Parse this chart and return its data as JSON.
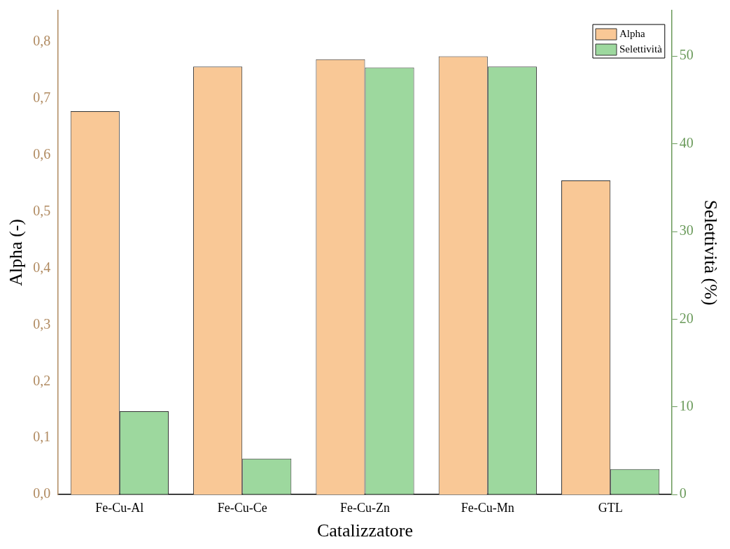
{
  "chart_data": {
    "type": "bar",
    "xlabel": "Catalizzatore",
    "ylabel": "Alpha (-)",
    "y2label": "Selettività (%)",
    "categories": [
      "Fe-Cu-Al",
      "Fe-Cu-Ce",
      "Fe-Cu-Zn",
      "Fe-Cu-Mn",
      "GTL"
    ],
    "series": [
      {
        "name": "Alpha",
        "color": "#f9c896",
        "values": [
          0.677,
          0.756,
          0.769,
          0.774,
          0.555
        ]
      },
      {
        "name": "Selettività",
        "color": "#9dd89e",
        "axis": "y2",
        "values": [
          9.5,
          4.1,
          48.7,
          48.8,
          2.9
        ]
      }
    ],
    "ylim": [
      0,
      0.855
    ],
    "yticks": [
      {
        "value": 0,
        "label": "0,0"
      },
      {
        "value": 0.1,
        "label": "0,1"
      },
      {
        "value": 0.2,
        "label": "0,2"
      },
      {
        "value": 0.3,
        "label": "0,3"
      },
      {
        "value": 0.4,
        "label": "0,4"
      },
      {
        "value": 0.5,
        "label": "0,5"
      },
      {
        "value": 0.6,
        "label": "0,6"
      },
      {
        "value": 0.7,
        "label": "0,7"
      },
      {
        "value": 0.8,
        "label": "0,8"
      }
    ],
    "y2lim": [
      0,
      55.2
    ],
    "y2ticks": [
      0,
      10,
      20,
      30,
      40,
      50
    ],
    "grid": false,
    "legend": "top right"
  }
}
